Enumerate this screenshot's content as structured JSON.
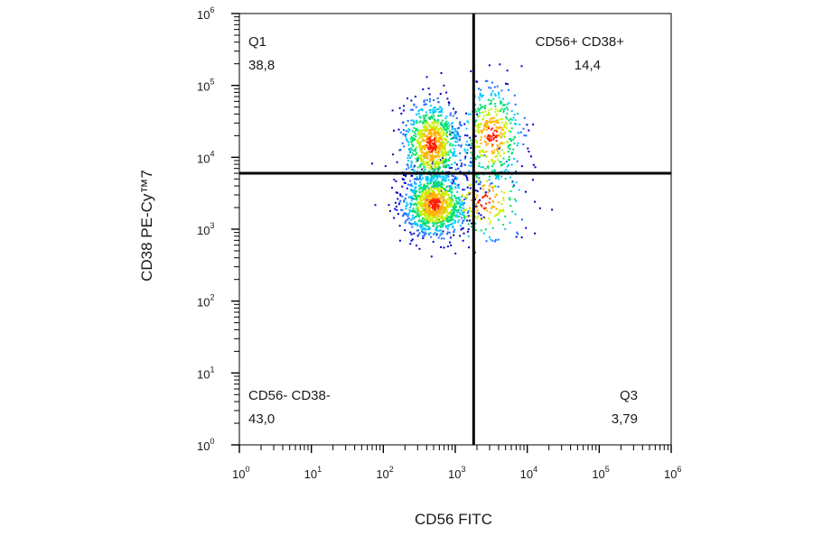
{
  "chart_data": {
    "type": "scatter",
    "subtype": "flow-cytometry-quadrant-density-plot",
    "xlabel": "CD56 FITC",
    "ylabel": "CD38 PE-Cy™7",
    "x_scale": "log",
    "y_scale": "log",
    "xlim": [
      1,
      1000000
    ],
    "ylim": [
      1,
      1000000
    ],
    "x_ticks": [
      {
        "base": "10",
        "exp": "0"
      },
      {
        "base": "10",
        "exp": "1"
      },
      {
        "base": "10",
        "exp": "2"
      },
      {
        "base": "10",
        "exp": "3"
      },
      {
        "base": "10",
        "exp": "4"
      },
      {
        "base": "10",
        "exp": "5"
      },
      {
        "base": "10",
        "exp": "6"
      }
    ],
    "y_ticks": [
      {
        "base": "10",
        "exp": "0"
      },
      {
        "base": "10",
        "exp": "1"
      },
      {
        "base": "10",
        "exp": "2"
      },
      {
        "base": "10",
        "exp": "3"
      },
      {
        "base": "10",
        "exp": "4"
      },
      {
        "base": "10",
        "exp": "5"
      },
      {
        "base": "10",
        "exp": "6"
      }
    ],
    "gates": {
      "x": 1800,
      "y": 6000
    },
    "quadrants": [
      {
        "name": "Q1",
        "value": "38,8",
        "position": "top-left"
      },
      {
        "name": "CD56+ CD38+",
        "value": "14,4",
        "position": "top-right"
      },
      {
        "name": "CD56- CD38-",
        "value": "43,0",
        "position": "bottom-left"
      },
      {
        "name": "Q3",
        "value": "3,79",
        "position": "bottom-right"
      }
    ],
    "populations": [
      {
        "center_x": 520,
        "center_y": 2200,
        "spread_x": 0.22,
        "spread_y": 0.22,
        "weight": 0.42
      },
      {
        "center_x": 470,
        "center_y": 15000,
        "spread_x": 0.2,
        "spread_y": 0.3,
        "weight": 0.33
      },
      {
        "center_x": 3200,
        "center_y": 20000,
        "spread_x": 0.22,
        "spread_y": 0.35,
        "weight": 0.17
      },
      {
        "center_x": 2500,
        "center_y": 2500,
        "spread_x": 0.3,
        "spread_y": 0.3,
        "weight": 0.08
      }
    ],
    "density_colors": [
      "#0000c8",
      "#1e6cff",
      "#00c8ff",
      "#00e070",
      "#c8f000",
      "#ffb400",
      "#ff2000"
    ],
    "frame_color": "#000000",
    "gate_color": "#000000"
  }
}
